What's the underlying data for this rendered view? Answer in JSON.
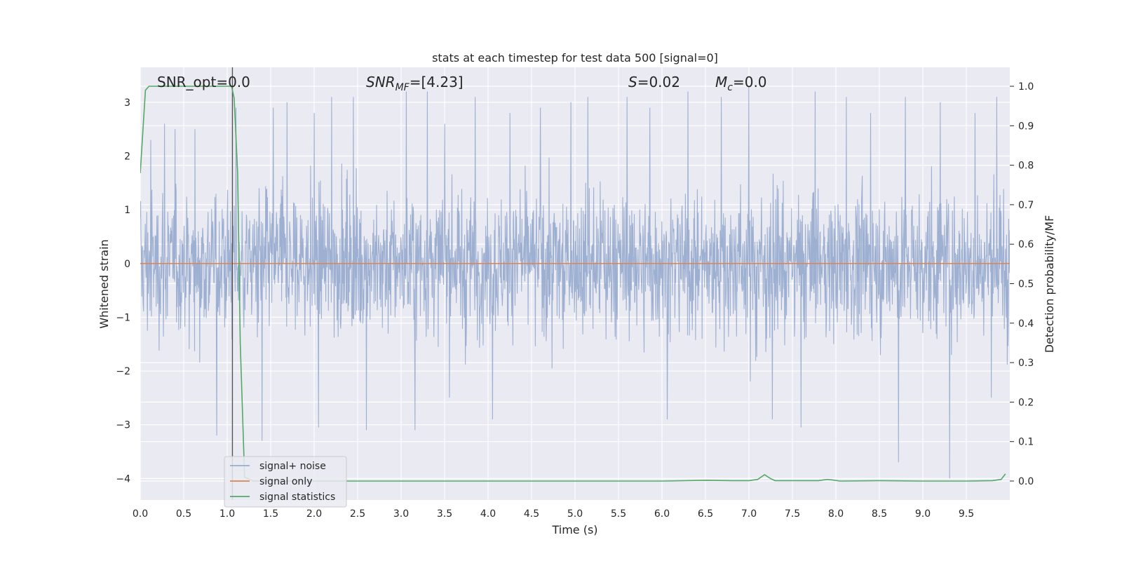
{
  "chart_data": {
    "type": "line",
    "title": "stats at each timestep for test data 500 [signal=0]",
    "xlabel": "Time (s)",
    "ylabel": "Whitened strain",
    "y2label": "Detection probability/MF",
    "xlim": [
      0.0,
      10.0
    ],
    "ylim": [
      -4.4,
      3.65
    ],
    "y2lim": [
      -0.048,
      1.048
    ],
    "x_ticks": [
      0.0,
      0.5,
      1.0,
      1.5,
      2.0,
      2.5,
      3.0,
      3.5,
      4.0,
      4.5,
      5.0,
      5.5,
      6.0,
      6.5,
      7.0,
      7.5,
      8.0,
      8.5,
      9.0,
      9.5
    ],
    "x_tick_labels": [
      "0.0",
      "0.5",
      "1.0",
      "1.5",
      "2.0",
      "2.5",
      "3.0",
      "3.5",
      "4.0",
      "4.5",
      "5.0",
      "5.5",
      "6.0",
      "6.5",
      "7.0",
      "7.5",
      "8.0",
      "8.5",
      "9.0",
      "9.5"
    ],
    "y_ticks": [
      3,
      2,
      1,
      0,
      -1,
      -2,
      -3,
      -4
    ],
    "y_tick_labels": [
      "3",
      "2",
      "1",
      "0",
      "−1",
      "−2",
      "−3",
      "−4"
    ],
    "y2_ticks": [
      1.0,
      0.9,
      0.8,
      0.7,
      0.6,
      0.5,
      0.4,
      0.3,
      0.2,
      0.1,
      0.0
    ],
    "y2_tick_labels": [
      "1.0",
      "0.9",
      "0.8",
      "0.7",
      "0.6",
      "0.5",
      "0.4",
      "0.3",
      "0.2",
      "0.1",
      "0.0"
    ],
    "grid": true,
    "legend_position": "lower-left",
    "annotations": {
      "snr_opt": "SNR_opt=0.0",
      "snr_mf_base": "SNR",
      "snr_mf_sub": "MF",
      "snr_mf_value": "=[4.23]",
      "s_name": "S",
      "s_value": "=0.02",
      "mc_base": "M",
      "mc_sub": "c",
      "mc_value": "=0.0"
    },
    "vline_x": 1.06,
    "series": [
      {
        "name": "signal+ noise",
        "color": "#9aadd0",
        "note": "dense whitened noise, roughly between -2 and 2 with spikes to about 3.3 and -4.0",
        "spikes": [
          {
            "x": 0.12,
            "y": 2.3
          },
          {
            "x": 0.28,
            "y": 2.6
          },
          {
            "x": 0.4,
            "y": 2.5
          },
          {
            "x": 0.63,
            "y": 2.5
          },
          {
            "x": 0.88,
            "y": -3.2
          },
          {
            "x": 1.1,
            "y": 2.9
          },
          {
            "x": 1.4,
            "y": -3.3
          },
          {
            "x": 1.53,
            "y": 2.9
          },
          {
            "x": 1.69,
            "y": 3.0
          },
          {
            "x": 2.0,
            "y": 2.8
          },
          {
            "x": 2.05,
            "y": -3.05
          },
          {
            "x": 2.2,
            "y": 3.1
          },
          {
            "x": 2.45,
            "y": 3.1
          },
          {
            "x": 2.6,
            "y": -3.1
          },
          {
            "x": 3.06,
            "y": 3.2
          },
          {
            "x": 3.16,
            "y": -3.1
          },
          {
            "x": 3.3,
            "y": 3.2
          },
          {
            "x": 3.5,
            "y": 2.6
          },
          {
            "x": 3.85,
            "y": 3.1
          },
          {
            "x": 4.05,
            "y": -2.9
          },
          {
            "x": 4.25,
            "y": 2.8
          },
          {
            "x": 4.6,
            "y": 2.9
          },
          {
            "x": 4.95,
            "y": 3.0
          },
          {
            "x": 5.15,
            "y": 3.1
          },
          {
            "x": 5.6,
            "y": 3.1
          },
          {
            "x": 5.86,
            "y": 2.9
          },
          {
            "x": 6.06,
            "y": -2.9
          },
          {
            "x": 6.3,
            "y": 3.2
          },
          {
            "x": 6.68,
            "y": 3.1
          },
          {
            "x": 7.0,
            "y": 3.3
          },
          {
            "x": 7.27,
            "y": -2.9
          },
          {
            "x": 7.6,
            "y": -3.05
          },
          {
            "x": 7.76,
            "y": 3.2
          },
          {
            "x": 8.12,
            "y": 3.1
          },
          {
            "x": 8.4,
            "y": 2.8
          },
          {
            "x": 8.72,
            "y": -3.7
          },
          {
            "x": 8.8,
            "y": 3.1
          },
          {
            "x": 9.2,
            "y": 3.0
          },
          {
            "x": 9.31,
            "y": -4.0
          },
          {
            "x": 9.6,
            "y": 2.8
          },
          {
            "x": 9.85,
            "y": 3.1
          }
        ]
      },
      {
        "name": "signal only",
        "color": "#dd8452",
        "x": [
          0.0,
          10.0
        ],
        "y": [
          0.0,
          0.0
        ]
      },
      {
        "name": "signal statistics",
        "color": "#55a868",
        "axis": "right",
        "x": [
          0.0,
          0.06,
          0.1,
          0.2,
          0.5,
          0.8,
          1.0,
          1.05,
          1.08,
          1.12,
          1.15,
          1.2,
          1.3,
          1.5,
          2.0,
          3.0,
          4.0,
          5.0,
          6.0,
          6.5,
          6.8,
          7.0,
          7.1,
          7.18,
          7.25,
          7.3,
          7.5,
          7.8,
          7.9,
          7.95,
          8.05,
          8.5,
          9.0,
          9.5,
          9.8,
          9.9,
          9.95
        ],
        "y": [
          0.78,
          0.99,
          1.0,
          1.0,
          1.0,
          1.0,
          1.0,
          1.0,
          0.97,
          0.78,
          0.35,
          0.01,
          0.0,
          0.0,
          0.0,
          0.0,
          0.0,
          0.0,
          0.0,
          0.002,
          0.001,
          0.001,
          0.004,
          0.016,
          0.006,
          0.001,
          0.001,
          0.001,
          0.004,
          0.003,
          0.0,
          0.001,
          0.0,
          0.0,
          0.001,
          0.004,
          0.018
        ]
      }
    ]
  }
}
